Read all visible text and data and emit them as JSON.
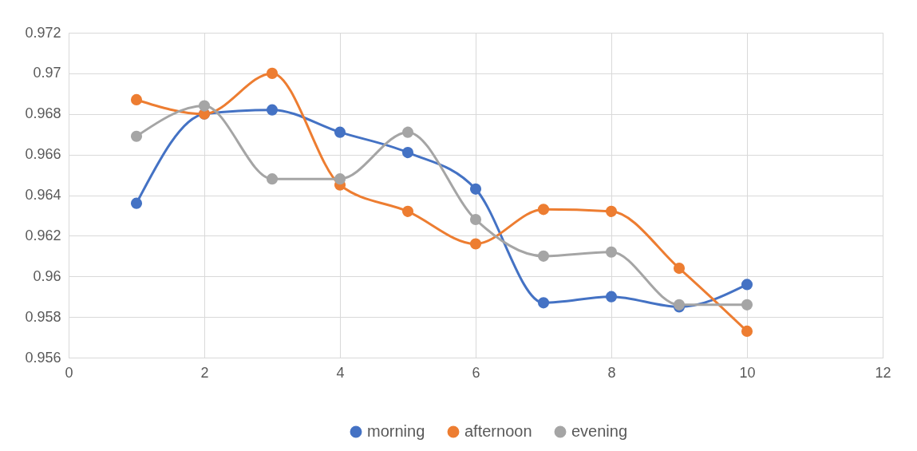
{
  "chart_data": {
    "type": "line",
    "x": [
      1,
      2,
      3,
      4,
      5,
      6,
      7,
      8,
      9,
      10
    ],
    "series": [
      {
        "name": "morning",
        "color": "#4472c4",
        "values": [
          0.9636,
          0.968,
          0.9682,
          0.9671,
          0.9661,
          0.9643,
          0.9587,
          0.959,
          0.9585,
          0.9596
        ]
      },
      {
        "name": "afternoon",
        "color": "#ed7d31",
        "values": [
          0.9687,
          0.968,
          0.97,
          0.9645,
          0.9632,
          0.9616,
          0.9633,
          0.9632,
          0.9604,
          0.9573
        ]
      },
      {
        "name": "evening",
        "color": "#a5a5a5",
        "values": [
          0.9669,
          0.9684,
          0.9648,
          0.9648,
          0.9671,
          0.9628,
          0.961,
          0.9612,
          0.9586,
          0.9586
        ]
      }
    ],
    "xlim": [
      0,
      12
    ],
    "xticks": [
      0,
      2,
      4,
      6,
      8,
      10,
      12
    ],
    "ylim": [
      0.956,
      0.972
    ],
    "yticks": [
      0.956,
      0.958,
      0.96,
      0.962,
      0.964,
      0.966,
      0.968,
      0.97,
      0.972
    ],
    "grid": true,
    "legend": "bottom",
    "marker": "circle",
    "line_style": "solid"
  }
}
